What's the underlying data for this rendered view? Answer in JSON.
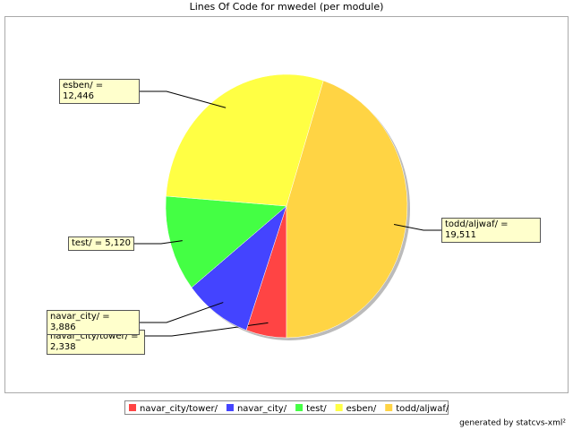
{
  "chart_data": {
    "type": "pie",
    "title": "Lines Of Code for mwedel (per module)",
    "categories": [
      "navar_city/tower/",
      "navar_city/",
      "test/",
      "esben/",
      "todd/aljwaf/"
    ],
    "values": [
      2338,
      3886,
      5120,
      12446,
      19511
    ],
    "value_labels": [
      "navar_city/tower/ = 2,338",
      "navar_city/ = 3,886",
      "test/ = 5,120",
      "esben/ = 12,446",
      "todd/aljwaf/ = 19,511"
    ],
    "colors": [
      "#ff4444",
      "#4444ff",
      "#44ff44",
      "#ffff44",
      "#ffd444"
    ],
    "legend": "bottom",
    "footer": "generated by statcvs-xml²"
  }
}
